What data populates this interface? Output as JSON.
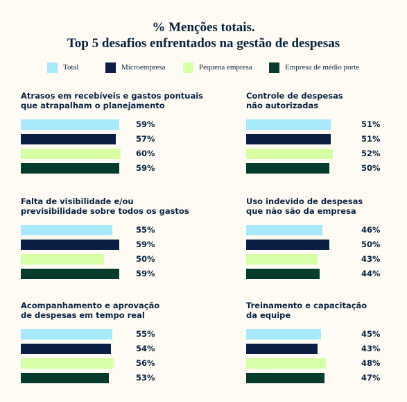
{
  "title_line1": "% Menções totais.",
  "title_line2": "Top 5 desafios enfrentados na gestão de despesas",
  "chart_data": {
    "type": "bar",
    "orientation": "horizontal",
    "title": "% Menções totais. Top 5 desafios enfrentados na gestão de despesas",
    "series": [
      {
        "name": "Total",
        "color": "#a8e9fb"
      },
      {
        "name": "Microempresa",
        "color": "#0b1f44"
      },
      {
        "name": "Pequena empresa",
        "color": "#d9ffa6"
      },
      {
        "name": "Empresa de médio porte",
        "color": "#073b2c"
      }
    ],
    "panels": [
      {
        "title_lines": [
          "Atrasos em recebíveis e gastos pontuais",
          "que atrapalham o planejamento"
        ],
        "values": [
          59,
          57,
          60,
          59
        ],
        "labels": [
          "59%",
          "57%",
          "60%",
          "59%"
        ]
      },
      {
        "title_lines": [
          "Controle de despesas",
          "não autorizadas"
        ],
        "values": [
          51,
          51,
          52,
          50
        ],
        "labels": [
          "51%",
          "51%",
          "52%",
          "50%"
        ]
      },
      {
        "title_lines": [
          "Falta de visibilidade e/ou",
          "previsibilidade sobre todos os gastos"
        ],
        "values": [
          55,
          59,
          50,
          59
        ],
        "labels": [
          "55%",
          "59%",
          "50%",
          "59%"
        ]
      },
      {
        "title_lines": [
          "Uso indevido de despesas",
          "que não são da empresa"
        ],
        "values": [
          46,
          50,
          43,
          44
        ],
        "labels": [
          "46%",
          "50%",
          "43%",
          "44%"
        ]
      },
      {
        "title_lines": [
          "Acompanhamento e aprovação",
          "de despesas em tempo real"
        ],
        "values": [
          55,
          54,
          56,
          53
        ],
        "labels": [
          "55%",
          "54%",
          "56%",
          "53%"
        ]
      },
      {
        "title_lines": [
          "Treinamento e capacitação",
          "da equipe"
        ],
        "values": [
          45,
          43,
          48,
          47
        ],
        "labels": [
          "45%",
          "43%",
          "48%",
          "47%"
        ]
      }
    ]
  }
}
